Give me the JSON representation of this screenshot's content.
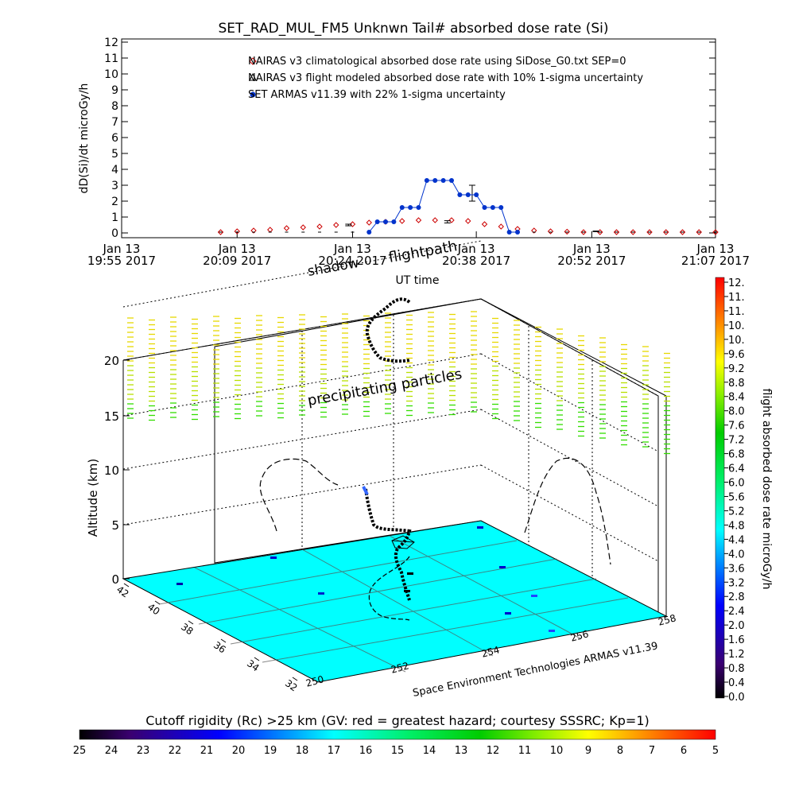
{
  "chart_data": [
    {
      "type": "line",
      "title": "SET_RAD_MUL_FM5 Unknwn Tail#  absorbed dose rate (Si)",
      "xlabel": "UT time",
      "ylabel": "dD(Si)/dt microGy/h",
      "ylim": [
        0,
        12
      ],
      "yticks": [
        "0",
        "1",
        "2",
        "3",
        "4",
        "5",
        "6",
        "7",
        "8",
        "9",
        "10",
        "11",
        "12"
      ],
      "xticks": [
        {
          "t": 0,
          "line1": "Jan 13",
          "line2": "19:55 2017"
        },
        {
          "t": 14,
          "line1": "Jan 13",
          "line2": "20:09 2017"
        },
        {
          "t": 28,
          "line1": "Jan 13",
          "line2": "20:24 2017"
        },
        {
          "t": 43,
          "line1": "Jan 13",
          "line2": "20:38 2017"
        },
        {
          "t": 57,
          "line1": "Jan 13",
          "line2": "20:52 2017"
        },
        {
          "t": 72,
          "line1": "Jan 13",
          "line2": "21:07 2017"
        }
      ],
      "legend": [
        {
          "symbol": "diamond",
          "color": "#cc0000",
          "label": "NAIRAS v3 climatological absorbed dose rate using SiDose_G0.txt SEP=0"
        },
        {
          "symbol": "triangle",
          "color": "#000000",
          "label": "NAIRAS v3 flight modeled absorbed dose rate with 10% 1-sigma uncertainty"
        },
        {
          "symbol": "dot",
          "color": "#0033cc",
          "label": "SET ARMAS v11.39 with 22% 1-sigma uncertainty"
        }
      ],
      "series": [
        {
          "name": "NAIRAS v3 climatological absorbed dose rate using SiDose_G0.txt SEP=0",
          "x": [
            12,
            14,
            16,
            18,
            20,
            22,
            24,
            26,
            28,
            30,
            32,
            34,
            36,
            38,
            40,
            42,
            44,
            46,
            48,
            50,
            52,
            54,
            56,
            58,
            60,
            62,
            64,
            66,
            68,
            70,
            72
          ],
          "y": [
            0.05,
            0.1,
            0.15,
            0.2,
            0.3,
            0.35,
            0.4,
            0.5,
            0.55,
            0.65,
            0.7,
            0.75,
            0.8,
            0.8,
            0.8,
            0.75,
            0.55,
            0.4,
            0.25,
            0.15,
            0.1,
            0.08,
            0.05,
            0.05,
            0.05,
            0.05,
            0.05,
            0.05,
            0.05,
            0.05,
            0.05
          ]
        },
        {
          "name": "NAIRAS v3 flight modeled absorbed dose rate with 10% 1-sigma uncertainty",
          "x": [
            27.5,
            39.5,
            42.5,
            57.5
          ],
          "y": [
            0.5,
            0.7,
            2.5,
            0.1
          ],
          "err": [
            0.05,
            0.07,
            0.5,
            0.02
          ]
        },
        {
          "name": "SET ARMAS v11.39 with 22% 1-sigma uncertainty",
          "x": [
            30,
            31,
            32,
            33,
            34,
            35,
            36,
            37,
            38,
            39,
            40,
            41,
            42,
            43,
            44,
            45,
            46,
            47,
            48
          ],
          "y": [
            0.05,
            0.7,
            0.7,
            0.7,
            1.6,
            1.6,
            1.6,
            3.3,
            3.3,
            3.3,
            3.3,
            2.4,
            2.4,
            2.4,
            1.6,
            1.6,
            1.6,
            0.05,
            0.05
          ]
        }
      ]
    },
    {
      "type": "scatter",
      "ylabel": "Altitude (km)",
      "zticks": [
        "0",
        "5",
        "10",
        "15",
        "20"
      ],
      "lat_ticks": [
        "42",
        "40",
        "38",
        "36",
        "34",
        "32"
      ],
      "lon_ticks": [
        "250",
        "252",
        "254",
        "256",
        "258"
      ],
      "annotations": [
        "shadow",
        "flightpath",
        "precipitating particles",
        "Space Environment Technologies ARMAS v11.39"
      ],
      "floor_color": "#00ffff",
      "colorbar": {
        "label": "flight absorbed dose rate microGy/h",
        "ticks": [
          "12.",
          "11.",
          "11.",
          "10.",
          "10.",
          "9.6",
          "9.2",
          "8.8",
          "8.4",
          "8.0",
          "7.6",
          "7.2",
          "6.8",
          "6.4",
          "6.0",
          "5.6",
          "5.2",
          "4.8",
          "4.4",
          "4.0",
          "3.6",
          "3.2",
          "2.8",
          "2.4",
          "2.0",
          "1.6",
          "1.2",
          "0.8",
          "0.4",
          "0.0"
        ]
      }
    },
    {
      "type": "heatmap",
      "title": "Cutoff rigidity (Rc) >25 km (GV: red = greatest hazard; courtesy SSSRC; Kp=1)",
      "ticks": [
        "25",
        "24",
        "23",
        "22",
        "21",
        "20",
        "19",
        "18",
        "17",
        "16",
        "15",
        "14",
        "13",
        "12",
        "11",
        "10",
        "9",
        "8",
        "7",
        "6",
        "5"
      ]
    }
  ]
}
